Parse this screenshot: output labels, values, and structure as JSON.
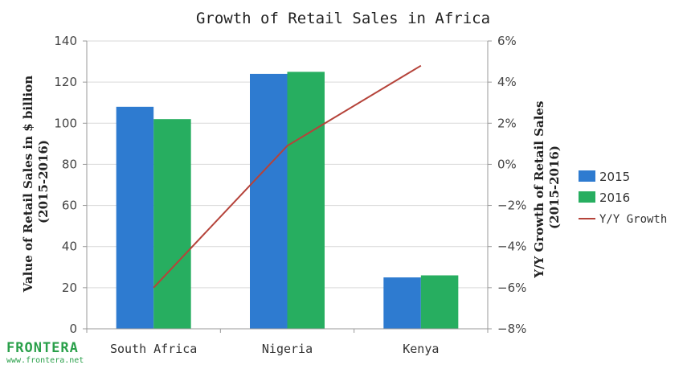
{
  "chart_data": {
    "type": "bar",
    "title": "Growth of Retail Sales in Africa",
    "categories": [
      "South Africa",
      "Nigeria",
      "Kenya"
    ],
    "series": [
      {
        "name": "2015",
        "type": "bar",
        "axis": "left",
        "color": "#2e7bd0",
        "values": [
          108,
          124,
          25
        ]
      },
      {
        "name": "2016",
        "type": "bar",
        "axis": "left",
        "color": "#27ae60",
        "values": [
          102,
          125,
          26
        ]
      },
      {
        "name": "Y/Y Growth",
        "type": "line",
        "axis": "right",
        "color": "#b5433a",
        "values": [
          -6.0,
          0.9,
          4.8
        ]
      }
    ],
    "ylabel": [
      "Value of Retail Sales in $ billion",
      "(2015-2016)"
    ],
    "y2label": [
      "Y/Y Growth of Retail Sales",
      "(2015-2016)"
    ],
    "ylim": [
      0,
      140
    ],
    "yticks": [
      "0",
      "20",
      "40",
      "60",
      "80",
      "100",
      "120",
      "140"
    ],
    "y2lim": [
      -8,
      6
    ],
    "y2ticks": [
      "−8%",
      "−6%",
      "−4%",
      "−2%",
      "0%",
      "2%",
      "4%",
      "6%"
    ],
    "grid": true,
    "legend_position": "right"
  },
  "logo": {
    "name": "FRONTERA",
    "url": "www.frontera.net"
  }
}
